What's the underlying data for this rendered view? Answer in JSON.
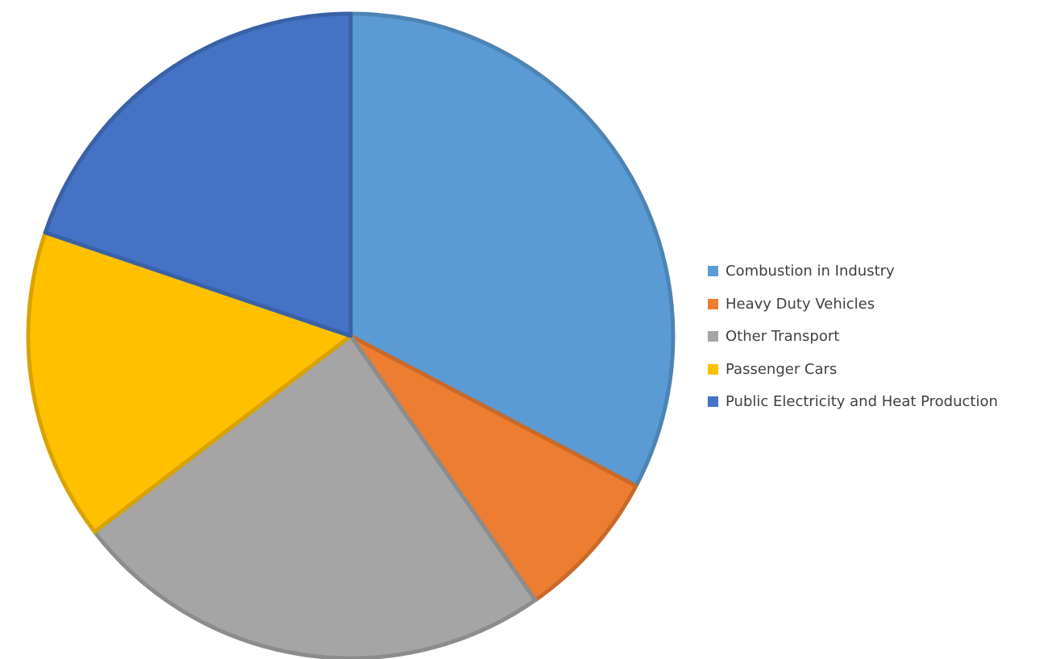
{
  "chart_data": {
    "type": "pie",
    "title": "",
    "legend_position": "right",
    "start_angle_deg": 0,
    "direction": "clockwise",
    "slices": [
      {
        "label": "Combustion in Industry",
        "value": 32.7,
        "color": "#5B9BD5"
      },
      {
        "label": "Heavy Duty Vehicles",
        "value": 7.6,
        "color": "#ED7D31"
      },
      {
        "label": "Other Transport",
        "value": 24.3,
        "color": "#A5A5A5"
      },
      {
        "label": "Passenger Cars",
        "value": 15.6,
        "color": "#FFC000"
      },
      {
        "label": "Public Electricity and Heat Production",
        "value": 19.8,
        "color": "#4472C4"
      }
    ]
  }
}
